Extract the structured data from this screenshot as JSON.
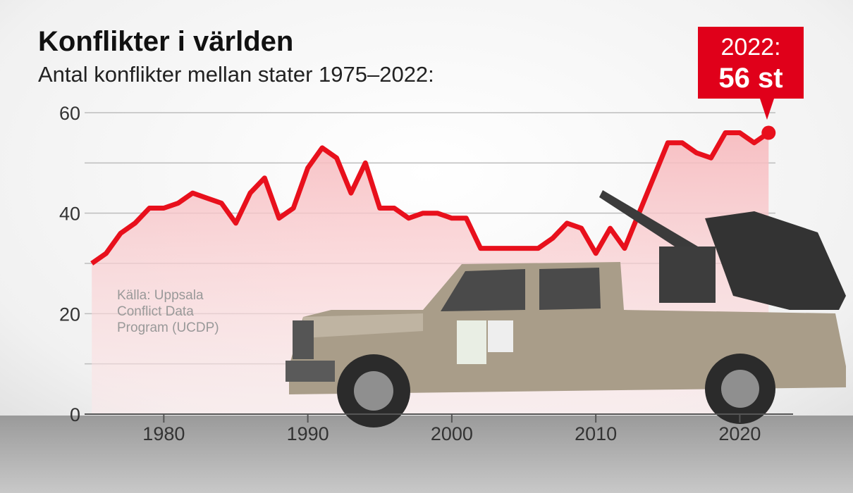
{
  "chart_data": {
    "type": "line",
    "title": "Konflikter i världen",
    "subtitle": "Antal konflikter mellan stater 1975–2022:",
    "source": [
      "Källa: Uppsala",
      "Conflict Data",
      "Program (UCDP)"
    ],
    "annotation": [
      "2022:",
      "56 st"
    ],
    "x": [
      1975,
      1976,
      1977,
      1978,
      1979,
      1980,
      1981,
      1982,
      1983,
      1984,
      1985,
      1986,
      1987,
      1988,
      1989,
      1990,
      1991,
      1992,
      1993,
      1994,
      1995,
      1996,
      1997,
      1998,
      1999,
      2000,
      2001,
      2002,
      2003,
      2004,
      2005,
      2006,
      2007,
      2008,
      2009,
      2010,
      2011,
      2012,
      2013,
      2014,
      2015,
      2016,
      2017,
      2018,
      2019,
      2020,
      2021,
      2022
    ],
    "values": [
      30,
      32,
      36,
      38,
      41,
      41,
      42,
      44,
      43,
      42,
      38,
      44,
      47,
      39,
      41,
      49,
      53,
      51,
      44,
      50,
      41,
      41,
      39,
      40,
      40,
      39,
      39,
      33,
      33,
      33,
      33,
      33,
      35,
      38,
      37,
      32,
      37,
      33,
      40,
      47,
      54,
      54,
      52,
      51,
      56,
      56,
      54,
      56
    ],
    "color": "#e8101c",
    "xlim": [
      1974.5,
      2023.7
    ],
    "xticks": [
      1980,
      1990,
      2000,
      2010,
      2020
    ],
    "ylim": [
      0,
      60
    ],
    "yticks": [
      0,
      20,
      40,
      60
    ],
    "minor_yticks": [
      10,
      30,
      50
    ],
    "grid": true
  }
}
